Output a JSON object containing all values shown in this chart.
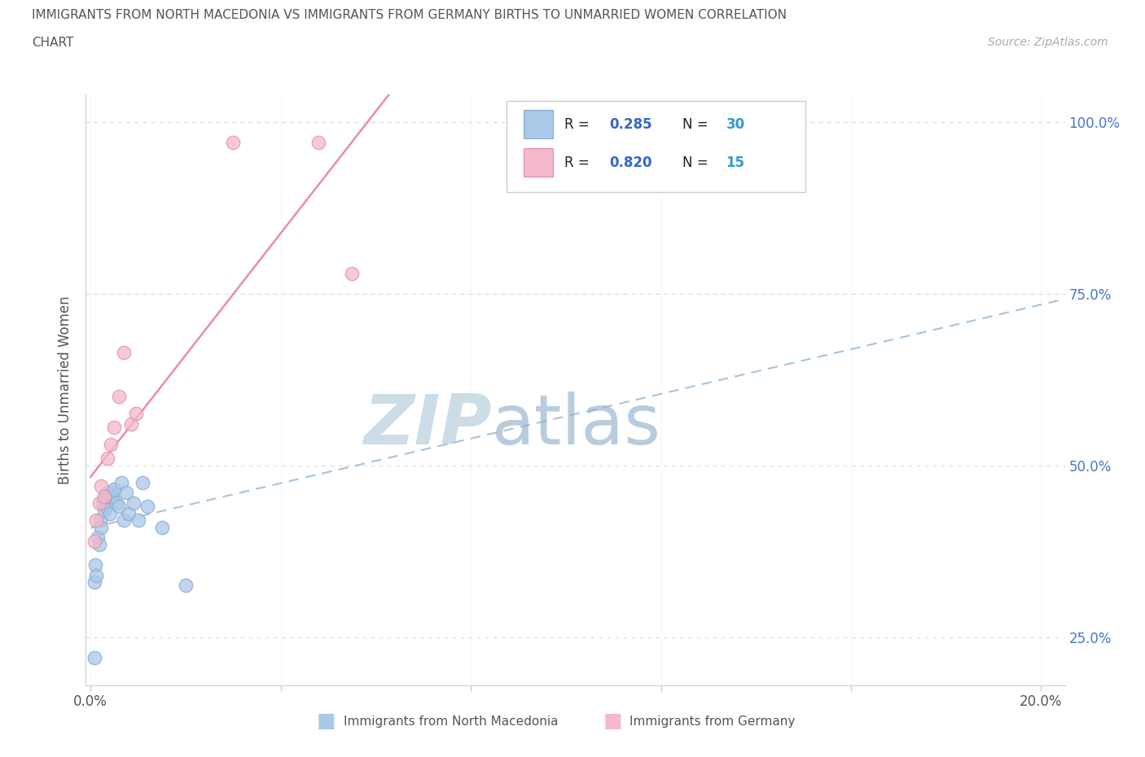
{
  "title_line1": "IMMIGRANTS FROM NORTH MACEDONIA VS IMMIGRANTS FROM GERMANY BIRTHS TO UNMARRIED WOMEN CORRELATION",
  "title_line2": "CHART",
  "source_text": "Source: ZipAtlas.com",
  "ylabel": "Births to Unmarried Women",
  "xlim": [
    -0.001,
    0.205
  ],
  "ylim": [
    0.18,
    1.04
  ],
  "x_ticks": [
    0.0,
    0.04,
    0.08,
    0.12,
    0.16,
    0.2
  ],
  "y_ticks": [
    0.25,
    0.5,
    0.75,
    1.0
  ],
  "y_tick_labels": [
    "25.0%",
    "50.0%",
    "75.0%",
    "100.0%"
  ],
  "r_blue": 0.285,
  "n_blue": 30,
  "r_pink": 0.82,
  "n_pink": 15,
  "blue_color": "#aac8e8",
  "blue_edge_color": "#88aad0",
  "pink_color": "#f5b8cc",
  "pink_edge_color": "#e090a8",
  "blue_line_color": "#8ab0d0",
  "pink_line_color": "#e87898",
  "watermark_zip_color": "#ccdde8",
  "watermark_atlas_color": "#b8ccdd",
  "legend_r_color": "#3366cc",
  "legend_n_color": "#3399cc",
  "background_color": "#ffffff",
  "grid_color": "#dddddd",
  "right_label_color": "#4477cc",
  "blue_scatter_x": [
    0.0008,
    0.001,
    0.0012,
    0.0015,
    0.0018,
    0.002,
    0.0022,
    0.0025,
    0.0028,
    0.003,
    0.0032,
    0.0035,
    0.0038,
    0.004,
    0.0042,
    0.0045,
    0.005,
    0.0055,
    0.006,
    0.0065,
    0.007,
    0.0075,
    0.008,
    0.009,
    0.01,
    0.011,
    0.012,
    0.015,
    0.0008,
    0.02
  ],
  "blue_scatter_y": [
    0.33,
    0.355,
    0.34,
    0.395,
    0.385,
    0.42,
    0.41,
    0.445,
    0.435,
    0.455,
    0.44,
    0.46,
    0.455,
    0.43,
    0.46,
    0.455,
    0.465,
    0.445,
    0.44,
    0.475,
    0.42,
    0.46,
    0.43,
    0.445,
    0.42,
    0.475,
    0.44,
    0.41,
    0.22,
    0.325
  ],
  "pink_scatter_x": [
    0.0008,
    0.0012,
    0.0018,
    0.0022,
    0.0028,
    0.0035,
    0.0042,
    0.005,
    0.006,
    0.007,
    0.0085,
    0.0095,
    0.03,
    0.048,
    0.055
  ],
  "pink_scatter_y": [
    0.39,
    0.42,
    0.445,
    0.47,
    0.455,
    0.51,
    0.53,
    0.555,
    0.6,
    0.665,
    0.56,
    0.575,
    0.97,
    0.97,
    0.78
  ],
  "figsize": [
    14.06,
    9.3
  ],
  "dpi": 100
}
